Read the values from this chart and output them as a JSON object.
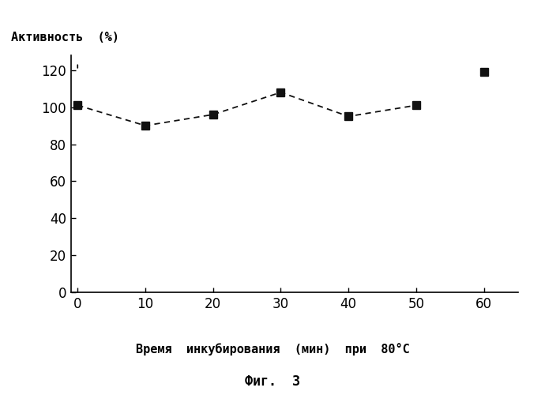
{
  "x_connected": [
    0,
    10,
    20,
    30,
    40,
    50
  ],
  "y_connected": [
    101,
    90,
    96,
    108,
    95,
    101
  ],
  "x_isolated": [
    60
  ],
  "y_isolated": [
    119
  ],
  "xlim": [
    -1,
    65
  ],
  "ylim": [
    0,
    128
  ],
  "yticks": [
    0,
    20,
    40,
    60,
    80,
    100,
    120
  ],
  "xticks": [
    0,
    10,
    20,
    30,
    40,
    50,
    60
  ],
  "ylabel": "Активность  (%)",
  "xlabel": "Время  инкубирования  (мин)  при  80°C",
  "fig_caption": "Фиг.  3",
  "marker_color": "#111111",
  "line_color": "#111111",
  "background_color": "#ffffff",
  "marker_size": 7,
  "line_width": 1.3
}
